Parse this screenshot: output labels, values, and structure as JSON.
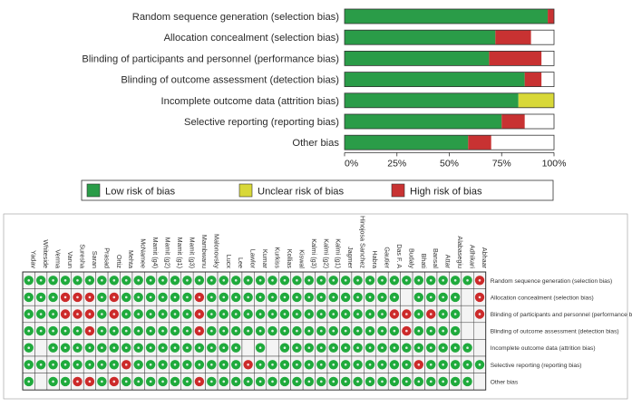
{
  "colors": {
    "low": "#2a9c48",
    "unclear": "#d8d838",
    "high": "#c83232",
    "dot_low": "#1faa3c",
    "dot_high": "#cc2a2a",
    "cell_bg": "#f4f4f4"
  },
  "chart_data": [
    {
      "type": "bar",
      "orientation": "horizontal",
      "stacked": true,
      "categories": [
        "Random sequence generation (selection bias)",
        "Allocation concealment (selection bias)",
        "Blinding of participants and personnel (performance bias)",
        "Blinding of outcome assessment (detection bias)",
        "Incomplete outcome data (attrition bias)",
        "Selective reporting (reporting bias)",
        "Other bias"
      ],
      "series": [
        {
          "name": "Low risk of bias",
          "color": "#2a9c48",
          "values": [
            97,
            72,
            69,
            86,
            83,
            75,
            59
          ]
        },
        {
          "name": "Unclear risk of bias",
          "color": "#d8d838",
          "values": [
            0,
            0,
            0,
            0,
            17,
            0,
            0
          ]
        },
        {
          "name": "High risk of bias",
          "color": "#c83232",
          "values": [
            3,
            17,
            25,
            8,
            0,
            11,
            11
          ]
        }
      ],
      "xlim": [
        0,
        100
      ],
      "x_ticks": [
        "0%",
        "25%",
        "50%",
        "75%",
        "100%"
      ],
      "legend": {
        "placement": "bottom",
        "items": [
          {
            "label": "Low risk of bias",
            "color": "#2a9c48"
          },
          {
            "label": "Unclear risk of bias",
            "color": "#d8d838"
          },
          {
            "label": "High risk of bias",
            "color": "#c83232"
          }
        ]
      }
    },
    {
      "type": "heatmap",
      "studies": [
        "Yadav",
        "Whiteside",
        "Verma",
        "Varun",
        "Suresha",
        "Saran",
        "Prasad",
        "Ortiz",
        "Mehta",
        "McNamee",
        "Mamit (g4)",
        "Mamit (g2)",
        "Mamit (g1)",
        "Mamit (g3)",
        "Mambwanu",
        "Malonovsky",
        "Lucx",
        "Lee",
        "Lawlor",
        "Kumar",
        "Kurkiss",
        "Kollias",
        "Kiswal",
        "Kalmi (g3)",
        "Kalmi (g2)",
        "Kalmi (g1)",
        "Jagmer",
        "Hinojosa Sanchez",
        "Habra",
        "Gautier",
        "Das F. A",
        "Budaly",
        "Bhati",
        "Bansal",
        "Attar",
        "Alabasegiu",
        "Adhikari",
        "Abhaar"
      ],
      "domains": [
        "Random sequence generation (selection bias)",
        "Allocation concealment (selection bias)",
        "Blinding of participants and personnel (performance bias)",
        "Blinding of outcome assessment (detection bias)",
        "Incomplete outcome data (attrition bias)",
        "Selective reporting (reporting bias)",
        "Other bias"
      ],
      "judgement_key": {
        "L": "Low risk of bias",
        "H": "High risk of bias",
        "": "Unclear risk of bias"
      },
      "judgements": [
        [
          "L",
          "L",
          "L",
          "L",
          "L",
          "L",
          "L",
          "L",
          "L",
          "L",
          "L",
          "L",
          "L",
          "L",
          "L",
          "L",
          "L",
          "L",
          "L",
          "L",
          "L",
          "L",
          "L",
          "L",
          "L",
          "L",
          "L",
          "L",
          "L",
          "L",
          "L",
          "L",
          "L",
          "L",
          "L",
          "L",
          "L",
          "H"
        ],
        [
          "L",
          "L",
          "L",
          "H",
          "H",
          "H",
          "L",
          "H",
          "L",
          "L",
          "L",
          "L",
          "L",
          "L",
          "H",
          "L",
          "L",
          "L",
          "L",
          "L",
          "L",
          "L",
          "L",
          "L",
          "L",
          "L",
          "L",
          "L",
          "L",
          "L",
          "L",
          "",
          "L",
          "L",
          "L",
          "L",
          "",
          "H"
        ],
        [
          "L",
          "L",
          "L",
          "H",
          "H",
          "H",
          "L",
          "H",
          "L",
          "L",
          "L",
          "L",
          "L",
          "L",
          "H",
          "L",
          "L",
          "L",
          "L",
          "L",
          "L",
          "L",
          "L",
          "L",
          "L",
          "L",
          "L",
          "L",
          "L",
          "L",
          "H",
          "H",
          "L",
          "H",
          "L",
          "L",
          "",
          "H"
        ],
        [
          "L",
          "L",
          "L",
          "L",
          "L",
          "H",
          "L",
          "L",
          "L",
          "L",
          "L",
          "L",
          "L",
          "L",
          "H",
          "L",
          "L",
          "L",
          "L",
          "L",
          "L",
          "L",
          "L",
          "L",
          "L",
          "L",
          "L",
          "L",
          "L",
          "L",
          "L",
          "H",
          "L",
          "L",
          "L",
          "L",
          "",
          ""
        ],
        [
          "L",
          "",
          "L",
          "L",
          "L",
          "L",
          "L",
          "L",
          "L",
          "L",
          "L",
          "L",
          "L",
          "L",
          "L",
          "L",
          "L",
          "L",
          "",
          "L",
          "",
          "L",
          "L",
          "L",
          "L",
          "L",
          "L",
          "L",
          "L",
          "L",
          "L",
          "L",
          "L",
          "L",
          "L",
          "L",
          "L",
          ""
        ],
        [
          "L",
          "L",
          "L",
          "L",
          "L",
          "L",
          "L",
          "L",
          "H",
          "L",
          "L",
          "L",
          "L",
          "L",
          "L",
          "L",
          "L",
          "L",
          "H",
          "L",
          "L",
          "L",
          "L",
          "L",
          "L",
          "L",
          "L",
          "L",
          "L",
          "L",
          "L",
          "L",
          "H",
          "L",
          "L",
          "L",
          "L",
          "L"
        ],
        [
          "L",
          "",
          "L",
          "L",
          "H",
          "H",
          "L",
          "H",
          "L",
          "L",
          "L",
          "L",
          "L",
          "L",
          "H",
          "L",
          "L",
          "L",
          "L",
          "L",
          "L",
          "L",
          "L",
          "L",
          "L",
          "L",
          "L",
          "L",
          "L",
          "L",
          "L",
          "L",
          "L",
          "L",
          "L",
          "L",
          "L",
          ""
        ]
      ]
    }
  ]
}
